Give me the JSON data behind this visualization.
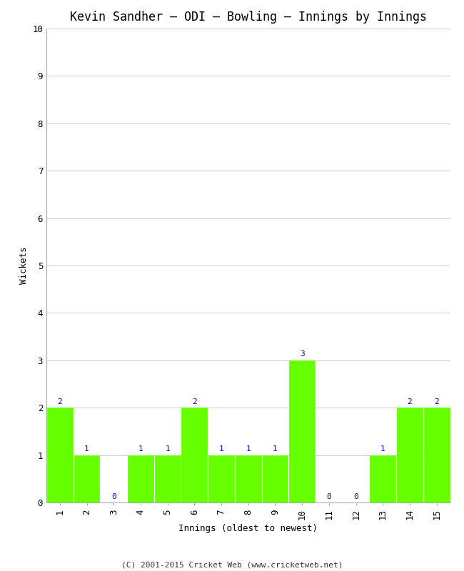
{
  "title": "Kevin Sandher – ODI – Bowling – Innings by Innings",
  "xlabel": "Innings (oldest to newest)",
  "ylabel": "Wickets",
  "categories": [
    "1",
    "2",
    "3",
    "4",
    "5",
    "6",
    "7",
    "8",
    "9",
    "10",
    "11",
    "12",
    "13",
    "14",
    "15"
  ],
  "values": [
    2,
    1,
    0,
    1,
    1,
    2,
    1,
    1,
    1,
    3,
    0,
    0,
    1,
    2,
    2
  ],
  "bar_color": "#66ff00",
  "bar_edge_color": "#66ff00",
  "label_color": "#0000cc",
  "ylim": [
    0,
    10
  ],
  "yticks": [
    0,
    1,
    2,
    3,
    4,
    5,
    6,
    7,
    8,
    9,
    10
  ],
  "background_color": "#ffffff",
  "grid_color": "#cccccc",
  "title_fontsize": 12,
  "axis_label_fontsize": 9,
  "tick_fontsize": 9,
  "bar_label_fontsize": 8,
  "footer": "(C) 2001-2015 Cricket Web (www.cricketweb.net)",
  "footer_fontsize": 8,
  "bar_width": 0.95
}
